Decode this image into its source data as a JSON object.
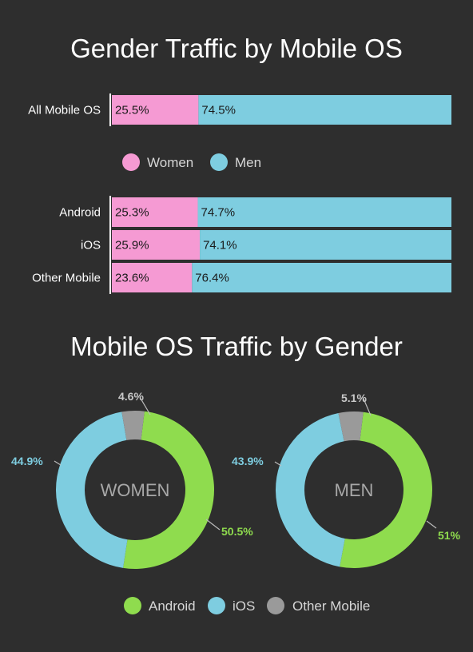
{
  "chart_data": [
    {
      "type": "bar",
      "title": "Gender Traffic by Mobile OS",
      "orientation": "horizontal",
      "stacked": true,
      "legend": {
        "position": "middle",
        "items": [
          "Women",
          "Men"
        ]
      },
      "colors": {
        "Women": "#f59ad3",
        "Men": "#7ecde0"
      },
      "groups": [
        {
          "categories": [
            "All Mobile OS"
          ],
          "series": [
            {
              "name": "Women",
              "values": [
                25.5
              ],
              "labels": [
                "25.5%"
              ]
            },
            {
              "name": "Men",
              "values": [
                74.5
              ],
              "labels": [
                "74.5%"
              ]
            }
          ]
        },
        {
          "categories": [
            "Android",
            "iOS",
            "Other Mobile"
          ],
          "series": [
            {
              "name": "Women",
              "values": [
                25.3,
                25.9,
                23.6
              ],
              "labels": [
                "25.3%",
                "25.9%",
                "23.6%"
              ]
            },
            {
              "name": "Men",
              "values": [
                74.7,
                74.1,
                76.4
              ],
              "labels": [
                "74.7%",
                "74.1%",
                "76.4%"
              ]
            }
          ]
        }
      ]
    },
    {
      "type": "pie",
      "title": "Mobile OS Traffic by Gender",
      "donut": true,
      "legend": {
        "position": "bottom",
        "items": [
          "Android",
          "iOS",
          "Other Mobile"
        ]
      },
      "colors": {
        "Android": "#8fdc4e",
        "iOS": "#7ecde0",
        "Other Mobile": "#9a9a9a"
      },
      "charts": [
        {
          "center_label": "WOMEN",
          "slices": [
            {
              "name": "Android",
              "value": 50.5,
              "label": "50.5%"
            },
            {
              "name": "iOS",
              "value": 44.9,
              "label": "44.9%"
            },
            {
              "name": "Other Mobile",
              "value": 4.6,
              "label": "4.6%"
            }
          ]
        },
        {
          "center_label": "MEN",
          "slices": [
            {
              "name": "Android",
              "value": 51,
              "label": "51%"
            },
            {
              "name": "iOS",
              "value": 43.9,
              "label": "43.9%"
            },
            {
              "name": "Other Mobile",
              "value": 5.1,
              "label": "5.1%"
            }
          ]
        }
      ]
    }
  ]
}
